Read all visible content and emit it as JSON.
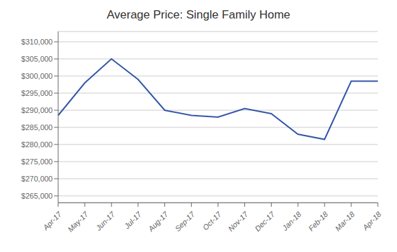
{
  "chart_data": {
    "type": "line",
    "title": "Average Price: Single Family Home",
    "categories": [
      "Apr-17",
      "May-17",
      "Jun-17",
      "Jul-17",
      "Aug-17",
      "Sep-17",
      "Oct-17",
      "Nov-17",
      "Dec-17",
      "Jan-18",
      "Feb-18",
      "Mar-18",
      "Apr-18"
    ],
    "values": [
      288500,
      298000,
      305000,
      299000,
      290000,
      288500,
      288000,
      290500,
      289000,
      283000,
      281500,
      298500,
      298500
    ],
    "color": "#3355AA",
    "ylim": [
      263000,
      313000
    ],
    "yticks": [
      {
        "value": 265000,
        "label": "$265,000"
      },
      {
        "value": 270000,
        "label": "$270,000"
      },
      {
        "value": 275000,
        "label": "$275,000"
      },
      {
        "value": 280000,
        "label": "$280,000"
      },
      {
        "value": 285000,
        "label": "$285,000"
      },
      {
        "value": 290000,
        "label": "$290,000"
      },
      {
        "value": 295000,
        "label": "$295,000"
      },
      {
        "value": 300000,
        "label": "$300,000"
      },
      {
        "value": 305000,
        "label": "$305,000"
      },
      {
        "value": 310000,
        "label": "$310,000"
      }
    ],
    "grid": true
  }
}
